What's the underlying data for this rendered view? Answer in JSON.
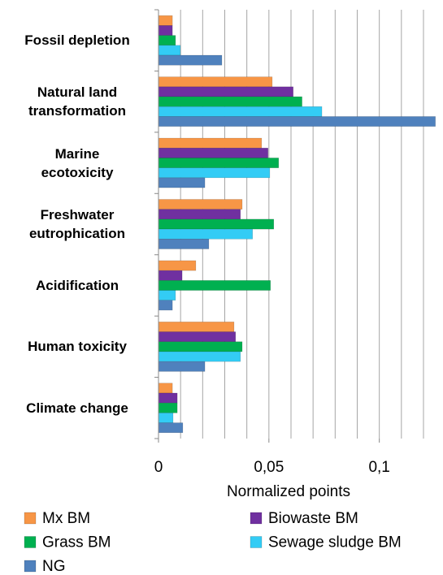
{
  "chart_data": {
    "type": "hbar",
    "x_label": "Normalized points",
    "categories": [
      "Fossil  depletion",
      "Natural land\ntransformation",
      "Marine\necotoxicity",
      "Freshwater\neutrophication",
      "Acidification",
      "Human  toxicity",
      "Climate  change"
    ],
    "series": [
      {
        "name": "Mx BM",
        "color": "#f79646",
        "values": [
          0.0063,
          0.0515,
          0.0467,
          0.0379,
          0.0169,
          0.0342,
          0.0063
        ]
      },
      {
        "name": "Biowaste BM",
        "color": "#7030a0",
        "values": [
          0.0063,
          0.061,
          0.0496,
          0.0371,
          0.0107,
          0.0349,
          0.0085
        ]
      },
      {
        "name": "Grass BM",
        "color": "#00b050",
        "values": [
          0.0077,
          0.065,
          0.0544,
          0.0522,
          0.0507,
          0.0379,
          0.0085
        ]
      },
      {
        "name": "Sewage sludge BM",
        "color": "#33ccf5",
        "values": [
          0.0099,
          0.074,
          0.0504,
          0.0426,
          0.0077,
          0.0371,
          0.0066
        ]
      },
      {
        "name": "NG",
        "color": "#4f81bd",
        "values": [
          0.0287,
          0.1254,
          0.021,
          0.0228,
          0.0063,
          0.021,
          0.011
        ]
      }
    ],
    "xlim": [
      0,
      0.127
    ],
    "xticks": [
      0,
      {
        "value": 0.05,
        "label": "0,05"
      },
      {
        "value": 0.1,
        "label": "0,1"
      }
    ],
    "grid_lines": [
      0.01,
      0.02,
      0.03,
      0.04,
      0.05,
      0.06,
      0.07,
      0.08,
      0.09,
      0.1,
      0.11,
      0.12
    ],
    "grid": true
  }
}
